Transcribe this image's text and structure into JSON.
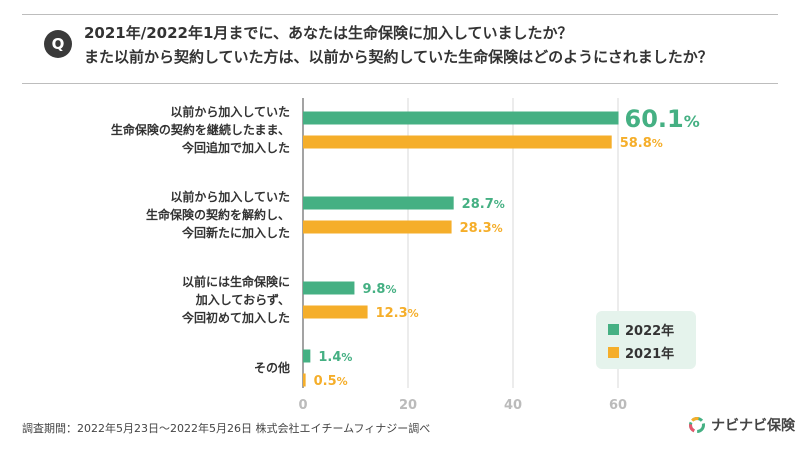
{
  "question": {
    "badge": "Q",
    "line1": "2021年/2022年1月までに、あなたは生命保険に加入していましたか？",
    "line2": "また以前から契約していた方は、以前から契約していた生命保険はどのようにされましたか？"
  },
  "chart_data": {
    "type": "bar",
    "orientation": "horizontal",
    "categories": [
      [
        "以前から加入していた",
        "生命保険の契約を継続したまま、",
        "今回追加で加入した"
      ],
      [
        "以前から加入していた",
        "生命保険の契約を解約し、",
        "今回新たに加入した"
      ],
      [
        "以前には生命保険に",
        "加入しておらず、",
        "今回初めて加入した"
      ],
      [
        "その他"
      ]
    ],
    "series": [
      {
        "name": "2022年",
        "color": "#45b083",
        "values": [
          60.1,
          28.7,
          9.8,
          1.4
        ]
      },
      {
        "name": "2021年",
        "color": "#f5ae2a",
        "values": [
          58.8,
          28.3,
          12.3,
          0.5
        ]
      }
    ],
    "x_ticks": [
      "0",
      "20",
      "40",
      "60"
    ],
    "xlim": [
      0,
      60
    ],
    "unit": "%",
    "legend_position": "bottom-right",
    "grid": true
  },
  "legend": {
    "items": [
      "2022年",
      "2021年"
    ]
  },
  "source": "調査期間：2022年5月23日〜2022年5月26日 株式会社エイチームフィナジー調べ",
  "logo": {
    "text": "ナビナビ保険"
  }
}
